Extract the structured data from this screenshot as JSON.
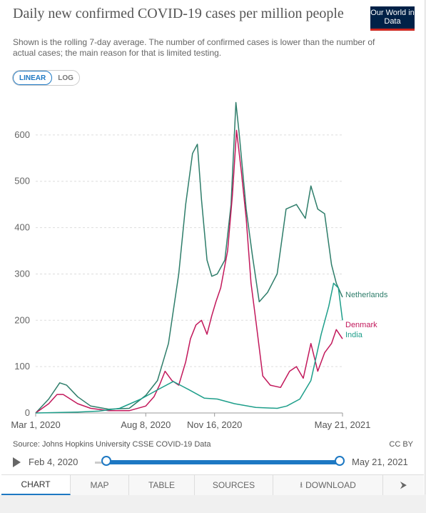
{
  "header": {
    "title": "Daily new confirmed COVID-19 cases per million people",
    "subtitle": "Shown is the rolling 7-day average. The number of confirmed cases is lower than the number of actual cases; the main reason for that is limited testing.",
    "logo": "Our World in Data"
  },
  "scale_toggle": {
    "linear_label": "LINEAR",
    "log_label": "LOG",
    "selected": "LINEAR"
  },
  "chart_data": {
    "type": "line",
    "ylim": [
      0,
      600
    ],
    "yticks": [
      "0",
      "100",
      "200",
      "300",
      "400",
      "500",
      "600"
    ],
    "xlim": [
      "2020-03-01",
      "2021-05-21"
    ],
    "xticks": [
      "Mar 1, 2020",
      "Aug 8, 2020",
      "Nov 16, 2020",
      "May 21, 2021"
    ],
    "xtick_dates": [
      "2020-03-01",
      "2020-08-08",
      "2020-11-16",
      "2021-05-21"
    ],
    "grid": true,
    "legend": "labels at right end of lines",
    "series": [
      {
        "name": "Netherlands",
        "color": "#2e7d6a",
        "x": [
          "2020-03-01",
          "2020-03-20",
          "2020-04-05",
          "2020-04-15",
          "2020-05-01",
          "2020-05-20",
          "2020-06-15",
          "2020-07-15",
          "2020-08-08",
          "2020-08-25",
          "2020-09-10",
          "2020-09-25",
          "2020-10-05",
          "2020-10-15",
          "2020-10-22",
          "2020-10-28",
          "2020-11-05",
          "2020-11-12",
          "2020-11-20",
          "2020-12-01",
          "2020-12-10",
          "2020-12-17",
          "2020-12-22",
          "2021-01-01",
          "2021-01-10",
          "2021-01-20",
          "2021-02-01",
          "2021-02-15",
          "2021-02-28",
          "2021-03-15",
          "2021-03-28",
          "2021-04-05",
          "2021-04-15",
          "2021-04-25",
          "2021-05-05",
          "2021-05-12",
          "2021-05-21"
        ],
        "y": [
          0,
          30,
          65,
          60,
          35,
          15,
          8,
          10,
          38,
          70,
          150,
          300,
          450,
          560,
          580,
          460,
          330,
          295,
          300,
          330,
          450,
          670,
          600,
          440,
          340,
          240,
          260,
          300,
          440,
          450,
          420,
          490,
          440,
          430,
          320,
          280,
          250
        ]
      },
      {
        "name": "Denmark",
        "color": "#c2185b",
        "x": [
          "2020-03-01",
          "2020-03-20",
          "2020-04-01",
          "2020-04-10",
          "2020-05-01",
          "2020-05-20",
          "2020-06-15",
          "2020-07-15",
          "2020-08-08",
          "2020-08-20",
          "2020-08-28",
          "2020-09-05",
          "2020-09-15",
          "2020-09-25",
          "2020-10-05",
          "2020-10-12",
          "2020-10-20",
          "2020-10-28",
          "2020-11-05",
          "2020-11-12",
          "2020-11-18",
          "2020-11-25",
          "2020-12-05",
          "2020-12-12",
          "2020-12-18",
          "2020-12-25",
          "2021-01-01",
          "2021-01-08",
          "2021-01-15",
          "2021-01-25",
          "2021-02-05",
          "2021-02-20",
          "2021-03-05",
          "2021-03-15",
          "2021-03-25",
          "2021-04-05",
          "2021-04-15",
          "2021-04-25",
          "2021-05-05",
          "2021-05-12",
          "2021-05-21"
        ],
        "y": [
          0,
          20,
          40,
          40,
          20,
          10,
          5,
          5,
          15,
          35,
          60,
          90,
          70,
          60,
          110,
          160,
          190,
          200,
          170,
          210,
          240,
          270,
          350,
          470,
          610,
          520,
          420,
          280,
          200,
          80,
          60,
          55,
          90,
          100,
          75,
          150,
          90,
          130,
          150,
          180,
          160
        ]
      },
      {
        "name": "India",
        "color": "#1d9e8a",
        "x": [
          "2020-03-01",
          "2020-05-01",
          "2020-06-01",
          "2020-07-01",
          "2020-08-01",
          "2020-08-25",
          "2020-09-17",
          "2020-10-10",
          "2020-11-01",
          "2020-11-20",
          "2020-12-15",
          "2021-01-15",
          "2021-02-15",
          "2021-03-01",
          "2021-03-20",
          "2021-04-05",
          "2021-04-20",
          "2021-05-01",
          "2021-05-08",
          "2021-05-15",
          "2021-05-21"
        ],
        "y": [
          0,
          2,
          4,
          10,
          30,
          50,
          68,
          50,
          32,
          30,
          20,
          12,
          10,
          15,
          30,
          70,
          170,
          230,
          280,
          270,
          200
        ]
      }
    ]
  },
  "footer": {
    "source": "Source: Johns Hopkins University CSSE COVID-19 Data",
    "license": "CC BY"
  },
  "timeline": {
    "start_label": "Feb 4, 2020",
    "end_label": "May 21, 2021"
  },
  "tabs": [
    {
      "label": "CHART",
      "active": true
    },
    {
      "label": "MAP"
    },
    {
      "label": "TABLE"
    },
    {
      "label": "SOURCES"
    },
    {
      "label": "DOWNLOAD",
      "icon": "download-icon"
    },
    {
      "label": "",
      "icon": "share-icon"
    }
  ]
}
